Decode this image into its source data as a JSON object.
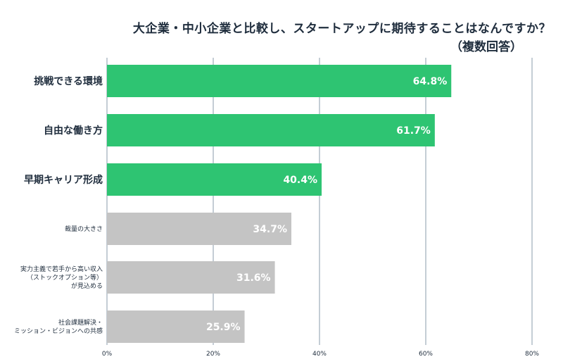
{
  "chart_data": {
    "type": "bar",
    "orientation": "horizontal",
    "title": "大企業・中小企業と比較し、スタートアップに期待することはなんですか？",
    "subtitle": "（複数回答）",
    "categories": [
      [
        "挑戦できる環境"
      ],
      [
        "自由な働き方"
      ],
      [
        "早期キャリア形成"
      ],
      [
        "裁量の大きさ"
      ],
      [
        "実力主義で若手から高い収入",
        "（ストックオプション等）",
        "が見込める"
      ],
      [
        "社会課題解決・",
        "ミッション・ビジョンへの共感"
      ]
    ],
    "values": [
      64.8,
      61.7,
      40.4,
      34.7,
      31.6,
      25.9
    ],
    "value_labels": [
      "64.8%",
      "61.7%",
      "40.4%",
      "34.7%",
      "31.6%",
      "25.9%"
    ],
    "bar_colors": [
      "#2ec472",
      "#2ec472",
      "#2ec472",
      "#c4c4c4",
      "#c4c4c4",
      "#c4c4c4"
    ],
    "xlim": [
      0,
      80
    ],
    "xticks": [
      0,
      20,
      40,
      60,
      80
    ],
    "xtick_labels": [
      "0%",
      "20%",
      "40%",
      "60%",
      "80%"
    ],
    "grid": true,
    "grid_color": "#8a9bab",
    "legend": "none"
  }
}
